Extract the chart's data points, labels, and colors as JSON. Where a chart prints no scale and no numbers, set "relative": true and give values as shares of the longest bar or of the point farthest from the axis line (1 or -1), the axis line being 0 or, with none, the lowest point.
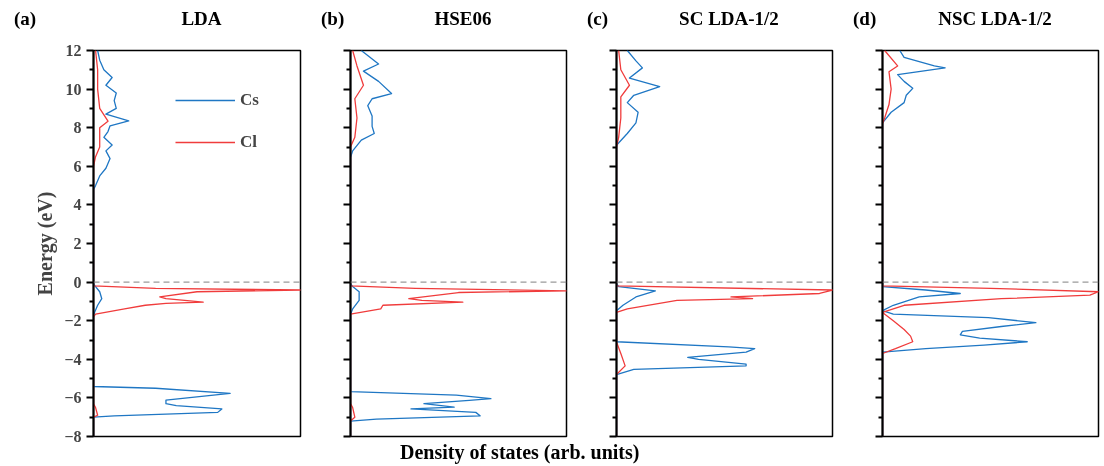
{
  "chart_data": [
    {
      "type": "line",
      "orientation": "horizontal",
      "relative": true,
      "title": "LDA",
      "annotations": [
        "(a)"
      ],
      "ylabel": "Energy (eV)",
      "xlabel": "Density of states (arb. units)",
      "ylim": [
        -8,
        12
      ],
      "yticks": [
        -8,
        -6,
        -4,
        -2,
        0,
        2,
        4,
        6,
        8,
        10,
        12
      ],
      "tick_labels": "y",
      "legend": "top right",
      "grid": false,
      "marker": "none",
      "line_style": "solid",
      "ref_lines": [
        {
          "axis": "y",
          "value": 0,
          "label": null,
          "color": "#808080",
          "line_style": "dashed"
        }
      ],
      "series": [
        {
          "name": "Cs",
          "color": "#1f77c4",
          "x": [
            12,
            11.5,
            11,
            10.6,
            10.2,
            9.8,
            9.4,
            9.0,
            8.7,
            8.35,
            8.1,
            7.8,
            7.5,
            7.1,
            6.8,
            6.4,
            5.9,
            5.5,
            5.0,
            4.8,
            -0.1,
            -0.23,
            -0.5,
            -0.86,
            -1.2,
            -1.57,
            -1.7,
            -5.41,
            -5.5,
            -5.77,
            -6.12,
            -6.3,
            -6.4,
            -6.57,
            -6.75,
            -6.93,
            -7.0,
            -8
          ],
          "values": [
            0.02,
            0.03,
            0.05,
            0.09,
            0.06,
            0.11,
            0.1,
            0.11,
            0.06,
            0.17,
            0.08,
            0.07,
            0.05,
            0.09,
            0.06,
            0.08,
            0.06,
            0.03,
            0.01,
            0,
            0,
            0.01,
            0.03,
            0.04,
            0.02,
            0.005,
            0,
            0,
            0.3,
            0.66,
            0.35,
            0.35,
            0.4,
            0.62,
            0.6,
            0.1,
            0,
            0
          ]
        },
        {
          "name": "Cl",
          "color": "#f03c3c",
          "x": [
            12,
            11,
            10,
            9,
            8.34,
            8,
            7,
            6.5,
            6,
            -0.2,
            -0.32,
            -0.41,
            -0.5,
            -0.77,
            -0.86,
            -1.04,
            -1.1,
            -1.2,
            -1.39,
            -1.66,
            -1.8,
            -6.3,
            -6.5,
            -6.9,
            -7.0,
            -8
          ],
          "values": [
            0.01,
            0.02,
            0.02,
            0.03,
            0.07,
            0.03,
            0.03,
            0.01,
            0,
            0,
            0.3,
            1.0,
            0.5,
            0.32,
            0.35,
            0.53,
            0.35,
            0.25,
            0.15,
            0.01,
            0,
            0,
            0.01,
            0.02,
            0,
            0
          ]
        }
      ]
    },
    {
      "type": "line",
      "orientation": "horizontal",
      "relative": true,
      "title": "HSE06",
      "annotations": [
        "(b)"
      ],
      "ylim": [
        -8,
        12
      ],
      "yticks": [
        -8,
        -6,
        -4,
        -2,
        0,
        2,
        4,
        6,
        8,
        10,
        12
      ],
      "tick_labels": false,
      "legend": false,
      "grid": false,
      "marker": "none",
      "line_style": "solid",
      "ref_lines": [
        {
          "axis": "y",
          "value": 0,
          "label": null,
          "color": "#808080",
          "line_style": "dashed"
        }
      ],
      "series": [
        {
          "color": "#1f77c4",
          "x": [
            12,
            11.3,
            10.93,
            10.4,
            9.77,
            9.5,
            9.14,
            8.6,
            8.07,
            7.7,
            7.36,
            6.8,
            6.46,
            -0.1,
            -0.23,
            -0.5,
            -0.95,
            -1.39,
            -1.66,
            -5.68,
            -5.86,
            -6.04,
            -6.13,
            -6.3,
            -6.48,
            -6.57,
            -6.75,
            -6.93,
            -7.1,
            -7.2,
            -8
          ],
          "values": [
            0.05,
            0.13,
            0.06,
            0.13,
            0.19,
            0.1,
            0.08,
            0.1,
            0.1,
            0.11,
            0.05,
            0.01,
            0,
            0,
            0.01,
            0.04,
            0.04,
            0.01,
            0,
            0,
            0.49,
            0.65,
            0.55,
            0.34,
            0.48,
            0.28,
            0.58,
            0.6,
            0.12,
            0,
            0
          ]
        },
        {
          "color": "#f03c3c",
          "x": [
            12,
            11.2,
            10.2,
            9.5,
            8.5,
            7.5,
            7,
            -0.2,
            -0.32,
            -0.45,
            -0.54,
            -0.86,
            -0.95,
            -1.04,
            -1.2,
            -1.39,
            -1.66,
            -6.3,
            -6.5,
            -7.0,
            -7.2,
            -8
          ],
          "values": [
            0.01,
            0.03,
            0.06,
            0.02,
            0.03,
            0.02,
            0,
            0,
            0.3,
            1.0,
            0.5,
            0.27,
            0.33,
            0.52,
            0.15,
            0.14,
            0,
            0,
            0.01,
            0.02,
            0,
            0
          ]
        }
      ]
    },
    {
      "type": "line",
      "orientation": "horizontal",
      "relative": true,
      "title": "SC LDA-1/2",
      "annotations": [
        "(c)"
      ],
      "ylim": [
        -8,
        12
      ],
      "yticks": [
        -8,
        -6,
        -4,
        -2,
        0,
        2,
        4,
        6,
        8,
        10,
        12
      ],
      "tick_labels": false,
      "legend": false,
      "grid": false,
      "marker": "none",
      "line_style": "solid",
      "ref_lines": [
        {
          "axis": "y",
          "value": 0,
          "label": null,
          "color": "#808080",
          "line_style": "dashed"
        }
      ],
      "series": [
        {
          "color": "#1f77c4",
          "x": [
            12,
            11.46,
            11.1,
            10.57,
            10.13,
            9.68,
            9.3,
            8.8,
            8.25,
            7.7,
            7.09,
            -0.1,
            -0.23,
            -0.46,
            -0.77,
            -1.2,
            -1.48,
            -3.09,
            -3.36,
            -3.45,
            -3.63,
            -3.9,
            -4.0,
            -4.25,
            -4.34,
            -4.52,
            -4.79,
            -8
          ],
          "values": [
            0.05,
            0.09,
            0.12,
            0.06,
            0.2,
            0.08,
            0.05,
            0.1,
            0.09,
            0.05,
            0,
            0,
            0.01,
            0.18,
            0.09,
            0.03,
            0,
            0,
            0.52,
            0.64,
            0.6,
            0.33,
            0.38,
            0.6,
            0.6,
            0.08,
            0,
            0
          ]
        },
        {
          "color": "#f03c3c",
          "x": [
            12,
            11,
            10.2,
            9.6,
            8.5,
            7.5,
            7,
            -0.2,
            -0.41,
            -0.59,
            -0.77,
            -0.86,
            -0.95,
            -1.39,
            -1.57,
            -3.1,
            -3.7,
            -4.34,
            -4.79,
            -8
          ],
          "values": [
            0.01,
            0.02,
            0.06,
            0.02,
            0.02,
            0.01,
            0,
            0,
            1.0,
            0.94,
            0.53,
            0.63,
            0.28,
            0.05,
            0,
            0,
            0.02,
            0.04,
            0,
            0
          ]
        }
      ]
    },
    {
      "type": "line",
      "orientation": "horizontal",
      "relative": true,
      "title": "NSC LDA-1/2",
      "annotations": [
        "(d)"
      ],
      "ylim": [
        -8,
        12
      ],
      "yticks": [
        -8,
        -6,
        -4,
        -2,
        0,
        2,
        4,
        6,
        8,
        10,
        12
      ],
      "tick_labels": false,
      "legend": false,
      "grid": false,
      "marker": "none",
      "line_style": "solid",
      "ref_lines": [
        {
          "axis": "y",
          "value": 0,
          "label": null,
          "color": "#808080",
          "line_style": "dashed"
        }
      ],
      "series": [
        {
          "color": "#1f77c4",
          "x": [
            12,
            11.64,
            11.2,
            11.1,
            10.75,
            10.4,
            10.04,
            9.68,
            9.3,
            8.8,
            8.25,
            -0.23,
            -0.41,
            -0.59,
            -0.77,
            -1.2,
            -1.48,
            -1.66,
            -1.84,
            -2.1,
            -2.3,
            -2.55,
            -2.73,
            -2.9,
            -3.09,
            -3.27,
            -3.45,
            -3.63,
            -8
          ],
          "values": [
            0.08,
            0.1,
            0.24,
            0.29,
            0.07,
            0.1,
            0.14,
            0.11,
            0.1,
            0.04,
            0,
            0,
            0.2,
            0.36,
            0.17,
            0.05,
            0,
            0.05,
            0.49,
            0.71,
            0.55,
            0.37,
            0.36,
            0.45,
            0.67,
            0.47,
            0.2,
            0,
            0
          ]
        },
        {
          "color": "#f03c3c",
          "x": [
            12,
            11.2,
            10.9,
            10,
            9.2,
            8.5,
            8.2,
            -0.2,
            -0.32,
            -0.5,
            -0.68,
            -0.86,
            -1.2,
            -1.57,
            -2.0,
            -2.46,
            -2.8,
            -3.09,
            -3.45,
            -3.7,
            -8
          ],
          "values": [
            0.01,
            0.07,
            0.03,
            0.04,
            0.03,
            0.01,
            0,
            0,
            0.5,
            1.0,
            0.96,
            0.55,
            0.1,
            0,
            0.05,
            0.1,
            0.13,
            0.14,
            0.06,
            0,
            0
          ]
        }
      ]
    }
  ]
}
